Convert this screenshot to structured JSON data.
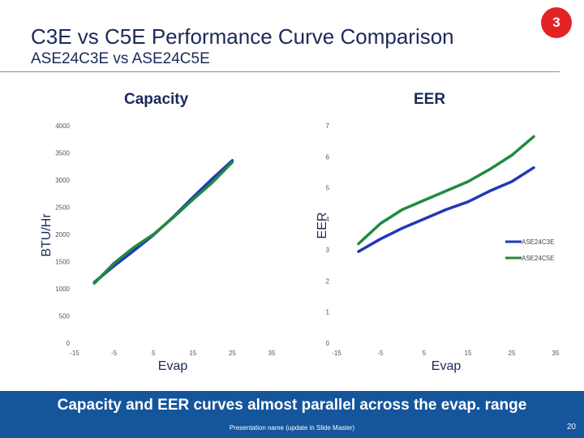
{
  "slide": {
    "title": "C3E vs C5E Performance Curve Comparison",
    "subtitle": "ASE24C3E vs ASE24C5E",
    "badge": "3",
    "banner": "Capacity and EER curves almost parallel across the evap. range",
    "footer": "Presentation name (update in Slide Master)",
    "page_number": "20",
    "colors": {
      "banner": "#15559c",
      "badge": "#e22323",
      "title": "#1b2a5a",
      "series_c3e": "#2337b8",
      "series_c5e": "#1f8a3e"
    }
  },
  "chart_data": [
    {
      "type": "line",
      "title": "Capacity",
      "xlabel": "Evap",
      "ylabel": "BTU/Hr",
      "xlim": [
        -15,
        35
      ],
      "ylim": [
        0,
        4000
      ],
      "xticks": [
        "-15",
        "-5",
        "5",
        "15",
        "25",
        "35"
      ],
      "yticks": [
        "0",
        "500",
        "1000",
        "1500",
        "2000",
        "2500",
        "3000",
        "3500",
        "4000"
      ],
      "series": [
        {
          "name": "ASE24C3E",
          "x": [
            -10,
            -5,
            0,
            5,
            10,
            15,
            20,
            25
          ],
          "values": [
            1120,
            1420,
            1700,
            1990,
            2320,
            2680,
            3030,
            3360
          ]
        },
        {
          "name": "ASE24C5E",
          "x": [
            -10,
            -5,
            0,
            5,
            10,
            15,
            20,
            25
          ],
          "values": [
            1100,
            1470,
            1760,
            2000,
            2310,
            2640,
            2960,
            3330
          ]
        }
      ]
    },
    {
      "type": "line",
      "title": "EER",
      "xlabel": "Evap",
      "ylabel": "EER",
      "xlim": [
        -15,
        35
      ],
      "ylim": [
        0,
        7
      ],
      "xticks": [
        "-15",
        "-5",
        "5",
        "15",
        "25",
        "35"
      ],
      "yticks": [
        "0",
        "1",
        "2",
        "3",
        "4",
        "5",
        "6",
        "7"
      ],
      "legend": "right",
      "series": [
        {
          "name": "ASE24C3E",
          "x": [
            -10,
            -5,
            0,
            5,
            10,
            15,
            20,
            25,
            30
          ],
          "values": [
            2.95,
            3.35,
            3.7,
            4.0,
            4.3,
            4.55,
            4.9,
            5.2,
            5.65
          ]
        },
        {
          "name": "ASE24C5E",
          "x": [
            -10,
            -5,
            0,
            5,
            10,
            15,
            20,
            25,
            30
          ],
          "values": [
            3.2,
            3.85,
            4.3,
            4.6,
            4.9,
            5.2,
            5.6,
            6.05,
            6.65
          ]
        }
      ]
    }
  ]
}
